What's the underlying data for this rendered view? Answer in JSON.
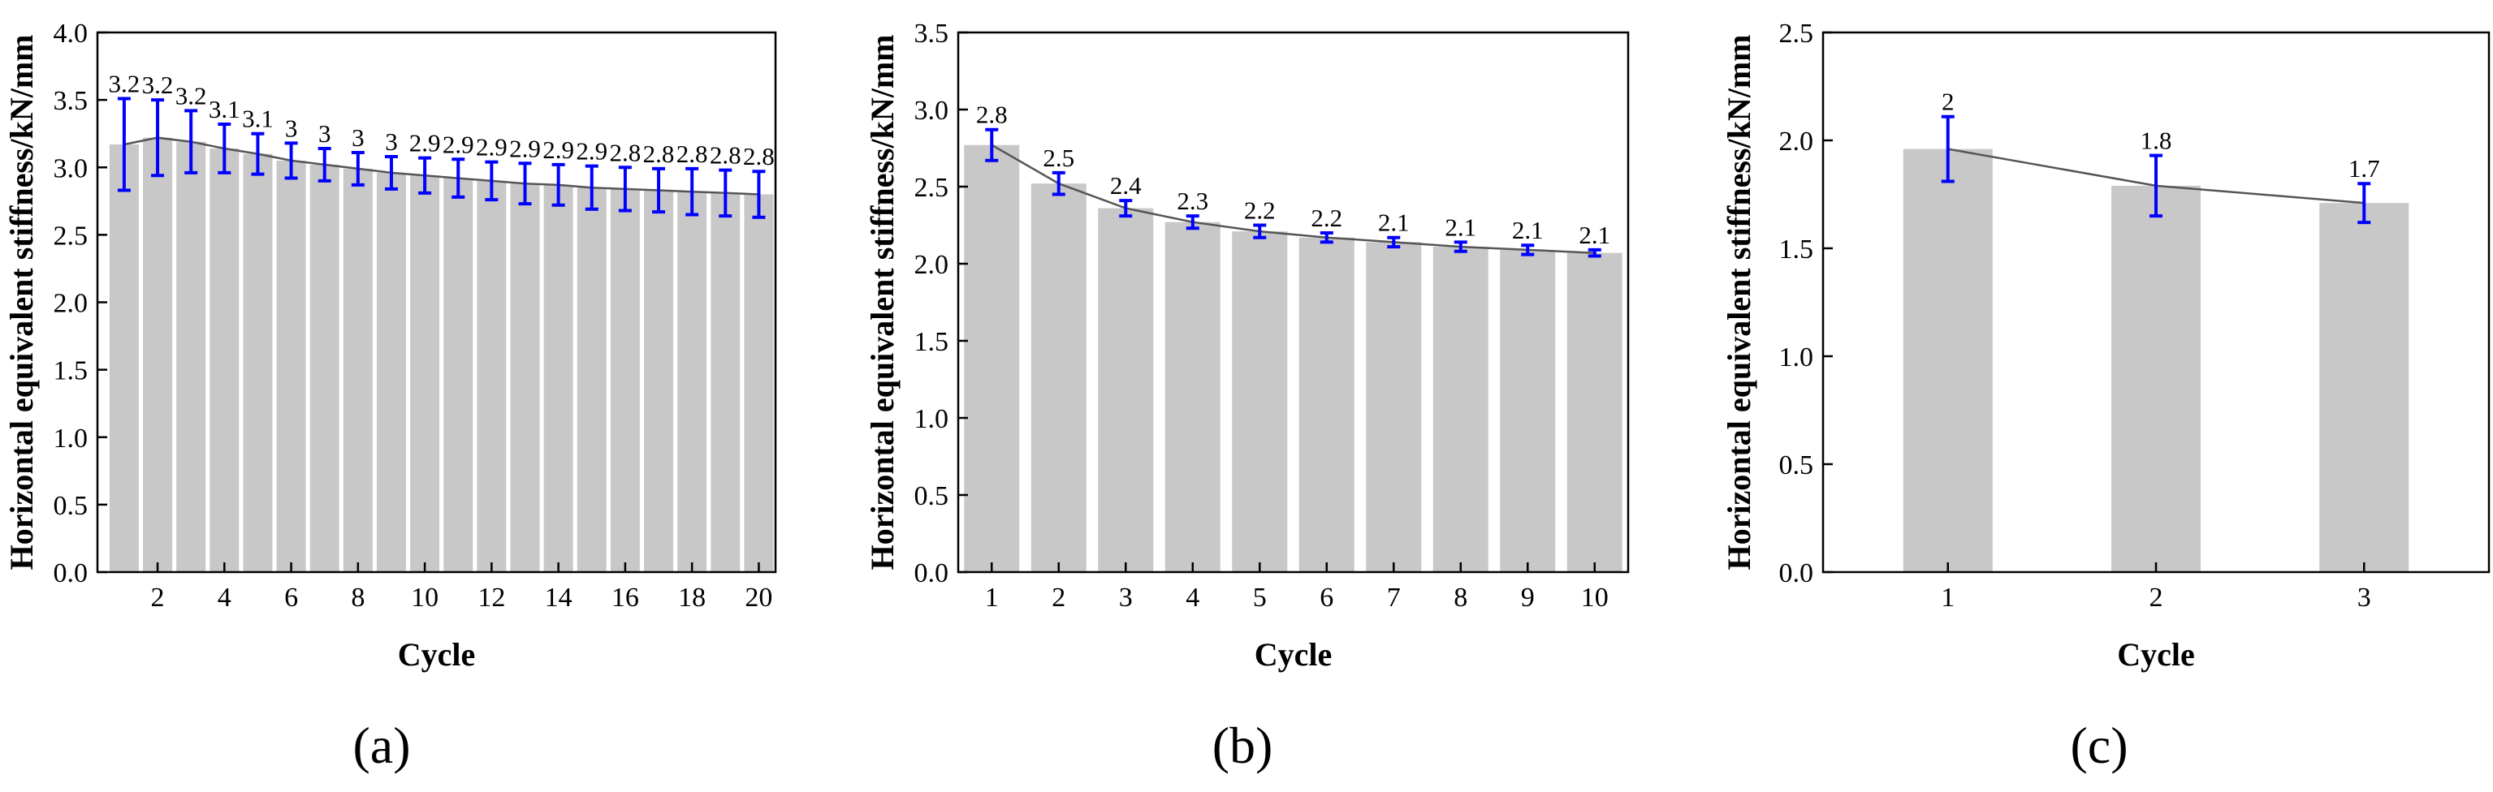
{
  "chart_data": [
    {
      "type": "bar",
      "panel_label": "(a)",
      "xlabel": "Cycle",
      "ylabel": "Horizontal equivalent stiffness/kN/mm",
      "ylim": [
        0,
        4.0
      ],
      "yticks": [
        "0.0",
        "0.5",
        "1.0",
        "1.5",
        "2.0",
        "2.5",
        "3.0",
        "3.5",
        "4.0"
      ],
      "xlim": [
        0.2,
        20.5
      ],
      "xticks": [
        2,
        4,
        6,
        8,
        10,
        12,
        14,
        16,
        18,
        20
      ],
      "categories": [
        1,
        2,
        3,
        4,
        5,
        6,
        7,
        8,
        9,
        10,
        11,
        12,
        13,
        14,
        15,
        16,
        17,
        18,
        19,
        20
      ],
      "values": [
        3.17,
        3.22,
        3.19,
        3.14,
        3.1,
        3.05,
        3.02,
        2.99,
        2.96,
        2.94,
        2.92,
        2.9,
        2.88,
        2.87,
        2.85,
        2.84,
        2.83,
        2.82,
        2.81,
        2.8
      ],
      "errors": [
        0.34,
        0.28,
        0.23,
        0.18,
        0.15,
        0.13,
        0.12,
        0.12,
        0.12,
        0.13,
        0.14,
        0.14,
        0.15,
        0.15,
        0.16,
        0.16,
        0.16,
        0.17,
        0.17,
        0.17
      ],
      "data_labels": [
        "3.2",
        "3.2",
        "3.2",
        "3.1",
        "3.1",
        "3",
        "3",
        "3",
        "3",
        "2.9",
        "2.9",
        "2.9",
        "2.9",
        "2.9",
        "2.9",
        "2.8",
        "2.8",
        "2.8",
        "2.8",
        "2.8"
      ],
      "grid": false
    },
    {
      "type": "bar",
      "panel_label": "(b)",
      "xlabel": "Cycle",
      "ylabel": "Horizontal equivalent stiffness/kN/mm",
      "ylim": [
        0,
        3.5
      ],
      "yticks": [
        "0.0",
        "0.5",
        "1.0",
        "1.5",
        "2.0",
        "2.5",
        "3.0",
        "3.5"
      ],
      "xlim": [
        0.5,
        10.5
      ],
      "xticks": [
        1,
        2,
        3,
        4,
        5,
        6,
        7,
        8,
        9,
        10
      ],
      "categories": [
        1,
        2,
        3,
        4,
        5,
        6,
        7,
        8,
        9,
        10
      ],
      "values": [
        2.77,
        2.52,
        2.36,
        2.27,
        2.21,
        2.17,
        2.14,
        2.11,
        2.09,
        2.07
      ],
      "errors": [
        0.1,
        0.07,
        0.05,
        0.04,
        0.04,
        0.03,
        0.03,
        0.03,
        0.03,
        0.02
      ],
      "data_labels": [
        "2.8",
        "2.5",
        "2.4",
        "2.3",
        "2.2",
        "2.2",
        "2.1",
        "2.1",
        "2.1",
        "2.1"
      ],
      "grid": false
    },
    {
      "type": "bar",
      "panel_label": "(c)",
      "xlabel": "Cycle",
      "ylabel": "Horizontal equivalent stiffness/kN/mm",
      "ylim": [
        0,
        2.5
      ],
      "yticks": [
        "0.0",
        "0.5",
        "1.0",
        "1.5",
        "2.0",
        "2.5"
      ],
      "xlim": [
        0.4,
        3.6
      ],
      "xticks": [
        1,
        2,
        3
      ],
      "categories": [
        1,
        2,
        3
      ],
      "values": [
        1.96,
        1.79,
        1.71
      ],
      "errors": [
        0.15,
        0.14,
        0.09
      ],
      "data_labels": [
        "2",
        "1.8",
        "1.7"
      ],
      "grid": false
    }
  ],
  "colors": {
    "bar": "#c8c8c8",
    "error": "#0000ff",
    "line": "#555555",
    "axis": "#000000"
  }
}
